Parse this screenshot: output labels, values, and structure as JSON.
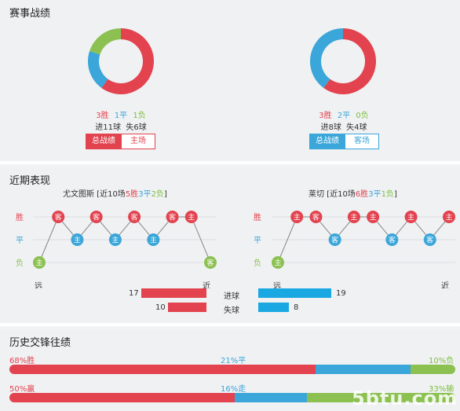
{
  "sections": {
    "record": "赛事战绩",
    "recent": "近期表现",
    "h2h": "历史交锋往绩"
  },
  "colors": {
    "win": "#e2434f",
    "draw": "#3aa6d9",
    "loss": "#8cc152"
  },
  "left_record": {
    "stats": {
      "win": "3胜",
      "draw": "1平",
      "loss": "1负"
    },
    "goals": "进11球  失6球",
    "tab_total": "总战绩",
    "tab_home": "主场",
    "pie": [
      3,
      1,
      1
    ]
  },
  "right_record": {
    "stats": {
      "win": "3胜",
      "draw": "2平",
      "loss": "0负"
    },
    "goals": "进8球  失4球",
    "tab_total": "总战绩",
    "tab_away": "客场",
    "pie": [
      3,
      2,
      0
    ]
  },
  "recent_left": {
    "team": "尤文图斯",
    "summary_pre": " [近10场",
    "wins": "5胜",
    "draws": "3平",
    "losses": "2负",
    "summary_post": "]",
    "results": [
      [
        "L",
        "主"
      ],
      [
        "W",
        "客"
      ],
      [
        "D",
        "主"
      ],
      [
        "W",
        "客"
      ],
      [
        "D",
        "主"
      ],
      [
        "W",
        "客"
      ],
      [
        "D",
        "主"
      ],
      [
        "W",
        "客"
      ],
      [
        "W",
        "主"
      ],
      [
        "L",
        "客"
      ]
    ]
  },
  "recent_right": {
    "team": "莱切",
    "summary_pre": " [近10场",
    "wins": "6胜",
    "draws": "3平",
    "losses": "1负",
    "summary_post": "]",
    "results": [
      [
        "L",
        "主"
      ],
      [
        "W",
        "主"
      ],
      [
        "W",
        "客"
      ],
      [
        "D",
        "客"
      ],
      [
        "W",
        "主"
      ],
      [
        "W",
        "主"
      ],
      [
        "D",
        "客"
      ],
      [
        "W",
        "主"
      ],
      [
        "D",
        "客"
      ],
      [
        "W",
        "主"
      ]
    ]
  },
  "axis": {
    "win": "胜",
    "draw": "平",
    "loss": "负",
    "far": "远",
    "near": "近"
  },
  "goals_compare": {
    "scored_label": "进球",
    "conceded_label": "失球",
    "left_scored": 17,
    "left_conceded": 10,
    "right_scored": 19,
    "right_conceded": 8
  },
  "h2h": {
    "row1": {
      "win": "68%胜",
      "draw": "21%平",
      "loss": "10%负",
      "values": [
        68,
        21,
        10
      ]
    },
    "row2": {
      "win": "50%赢",
      "draw": "16%走",
      "loss": "33%输",
      "values": [
        50,
        16,
        33
      ]
    }
  },
  "watermark": "5btu.com"
}
